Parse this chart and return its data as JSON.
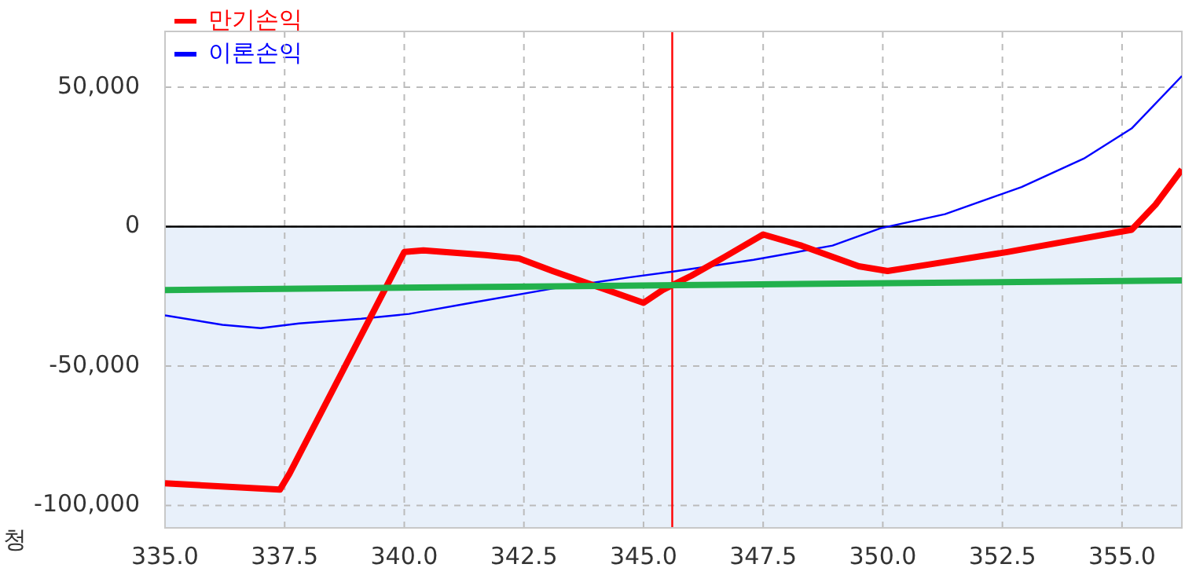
{
  "chart_data": {
    "type": "line",
    "series": [
      {
        "name": "만기손익",
        "color": "#ff0000",
        "x": [
          335,
          337.1,
          337.4,
          337.6,
          340.0,
          340.4,
          341.7,
          342.4,
          343.1,
          345.0,
          345.4,
          346.0,
          346.7,
          347.5,
          348.3,
          349.5,
          350.1,
          350.95,
          352.6,
          353.9,
          355.2,
          355.7,
          356.25
        ],
        "values": [
          -92000,
          -94000,
          -94300,
          -88600,
          -9100,
          -8500,
          -10200,
          -11400,
          -15900,
          -27300,
          -22700,
          -17600,
          -10800,
          -2800,
          -6800,
          -14200,
          -15900,
          -13600,
          -9100,
          -5100,
          -1100,
          7900,
          20500
        ]
      },
      {
        "name": "이론손익",
        "color": "#0000ff",
        "x": [
          335,
          336.2,
          337.0,
          337.8,
          339.1,
          340.1,
          341.4,
          343.1,
          344.7,
          345.7,
          347.3,
          348.95,
          349.95,
          351.3,
          352.9,
          354.2,
          355.2,
          356.25
        ],
        "values": [
          -31800,
          -35200,
          -36400,
          -34700,
          -33000,
          -31300,
          -27300,
          -22200,
          -18200,
          -15900,
          -11900,
          -6800,
          -600,
          4500,
          14200,
          24400,
          35200,
          54000
        ]
      },
      {
        "color": "#22b14c",
        "x": [
          335,
          356.25
        ],
        "values": [
          -22700,
          -19300
        ]
      }
    ],
    "xlim": [
      335,
      356.25
    ],
    "xticks": [
      {
        "value": 335,
        "label": "335.0"
      },
      {
        "value": 337.5,
        "label": "337.5"
      },
      {
        "value": 340,
        "label": "340.0"
      },
      {
        "value": 342.5,
        "label": "342.5"
      },
      {
        "value": 345,
        "label": "345.0"
      },
      {
        "value": 347.5,
        "label": "347.5"
      },
      {
        "value": 350,
        "label": "350.0"
      },
      {
        "value": 352.5,
        "label": "352.5"
      },
      {
        "value": 355,
        "label": "355.0"
      }
    ],
    "ylim": [
      -108000,
      70000
    ],
    "yticks": [
      {
        "value": -100000,
        "label": "-100,000"
      },
      {
        "value": -50000,
        "label": "-50,000"
      },
      0,
      {
        "value": 50000,
        "label": "50,000"
      }
    ],
    "bands": [
      {
        "axis": "y",
        "from": -108000,
        "to": 0,
        "color": "#e8f0fa"
      }
    ],
    "ref_lines": [
      {
        "axis": "y",
        "value": 0,
        "color": "#000000"
      },
      {
        "axis": "x",
        "value": 345.6,
        "color": "#ff0000"
      }
    ],
    "annotations": [
      "청"
    ],
    "grid": true,
    "legend": "top left",
    "marker": "none",
    "line_style": "solid"
  }
}
